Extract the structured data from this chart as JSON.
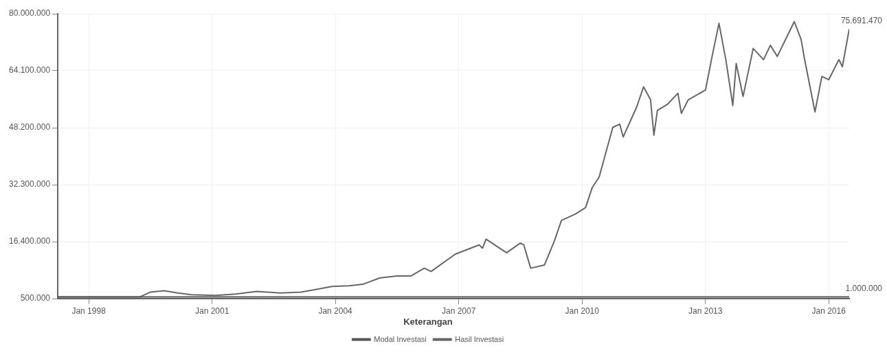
{
  "chart_data": {
    "type": "line",
    "legend_title": "Keterangan",
    "legend": "bottom",
    "grid": true,
    "marker": "none",
    "line_style": "solid",
    "xlim": [
      "1997-04",
      "2016-07"
    ],
    "xticks": [
      {
        "value": "1998-01",
        "label": "Jan 1998"
      },
      {
        "value": "2001-01",
        "label": "Jan 2001"
      },
      {
        "value": "2004-01",
        "label": "Jan 2004"
      },
      {
        "value": "2007-01",
        "label": "Jan 2007"
      },
      {
        "value": "2010-01",
        "label": "Jan 2010"
      },
      {
        "value": "2013-01",
        "label": "Jan 2013"
      },
      {
        "value": "2016-01",
        "label": "Jan 2016"
      }
    ],
    "ylim": [
      500000,
      80000000
    ],
    "yticks": [
      {
        "value": 500000,
        "label": "500.000"
      },
      {
        "value": 16400000,
        "label": "16.400.000"
      },
      {
        "value": 32300000,
        "label": "32.300.000"
      },
      {
        "value": 48200000,
        "label": "48.200.000"
      },
      {
        "value": 64100000,
        "label": "64.100.000"
      },
      {
        "value": 80000000,
        "label": "80.000.000"
      }
    ],
    "series": [
      {
        "name": "Modal Investasi",
        "color": "#555555",
        "x": [
          "1997-04",
          "2016-07"
        ],
        "values": [
          1000000,
          1000000
        ]
      },
      {
        "name": "Hasil Investasi",
        "color": "#666666",
        "x": [
          "1997-04",
          "1999-04",
          "1999-07",
          "1999-11",
          "2000-03",
          "2000-07",
          "2001-02",
          "2001-08",
          "2002-02",
          "2002-09",
          "2003-03",
          "2003-07",
          "2003-12",
          "2004-05",
          "2004-09",
          "2005-02",
          "2005-07",
          "2005-11",
          "2006-03",
          "2006-05",
          "2006-12",
          "2007-07",
          "2007-08",
          "2007-09",
          "2008-03",
          "2008-07",
          "2008-08",
          "2008-10",
          "2009-02",
          "2009-05",
          "2009-07",
          "2009-11",
          "2010-02",
          "2010-04",
          "2010-06",
          "2010-10",
          "2010-12",
          "2011-01",
          "2011-05",
          "2011-07",
          "2011-09",
          "2011-10",
          "2011-11",
          "2012-02",
          "2012-05",
          "2012-06",
          "2012-08",
          "2013-01",
          "2013-03",
          "2013-05",
          "2013-07",
          "2013-09",
          "2013-10",
          "2013-12",
          "2014-03",
          "2014-06",
          "2014-08",
          "2014-10",
          "2015-03",
          "2015-05",
          "2015-06",
          "2015-09",
          "2015-11",
          "2016-01",
          "2016-04",
          "2016-05",
          "2016-07"
        ],
        "values": [
          1000000,
          1000000,
          2300000,
          2700000,
          2100000,
          1600000,
          1400000,
          1800000,
          2500000,
          2100000,
          2300000,
          3000000,
          3900000,
          4100000,
          4500000,
          6300000,
          6800000,
          6800000,
          9000000,
          8100000,
          12900000,
          15500000,
          14600000,
          17100000,
          13300000,
          16000000,
          15500000,
          9000000,
          9900000,
          16700000,
          22300000,
          24100000,
          25900000,
          31500000,
          34400000,
          48300000,
          49200000,
          45600000,
          54000000,
          59600000,
          56000000,
          46100000,
          53000000,
          54800000,
          57800000,
          52200000,
          56000000,
          58700000,
          68100000,
          77300000,
          67200000,
          54400000,
          66100000,
          56900000,
          70300000,
          67200000,
          71200000,
          68100000,
          77800000,
          72800000,
          67200000,
          52600000,
          62500000,
          61600000,
          67200000,
          65200000,
          75691470
        ]
      }
    ],
    "annotations": [
      {
        "text": "75.691.470",
        "x": "2016-07",
        "y": 75691470
      },
      {
        "text": "1.000.000",
        "x": "2016-07",
        "y": 1000000
      }
    ]
  }
}
